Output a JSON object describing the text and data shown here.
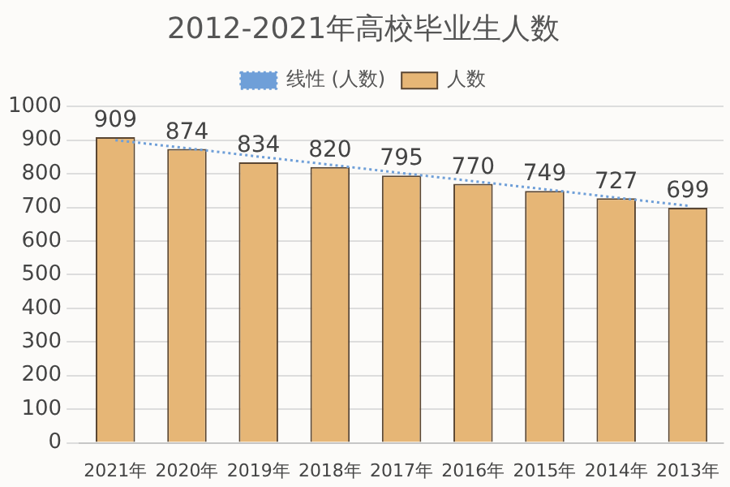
{
  "chart_data": {
    "type": "bar",
    "title": "2012-2021年高校毕业生人数",
    "categories": [
      "2021年",
      "2020年",
      "2019年",
      "2018年",
      "2017年",
      "2016年",
      "2015年",
      "2014年",
      "2013年"
    ],
    "series": [
      {
        "name": "人数",
        "color": "#e6b676",
        "values": [
          909,
          874,
          834,
          820,
          795,
          770,
          749,
          727,
          699
        ],
        "value_labels": [
          "909",
          "874",
          "834",
          "820",
          "795",
          "770",
          "749",
          "727",
          "699"
        ]
      },
      {
        "name": "线性 (人数)",
        "type": "line",
        "color": "#6f9fd8",
        "line_style": "dotted",
        "values": [
          900,
          876,
          851,
          827,
          802,
          778,
          754,
          729,
          705
        ]
      }
    ],
    "ylim": [
      0,
      1000
    ],
    "yticks": [
      0,
      100,
      200,
      300,
      400,
      500,
      600,
      700,
      800,
      900,
      1000
    ],
    "grid": "y",
    "legend": "top",
    "marker": "none"
  }
}
